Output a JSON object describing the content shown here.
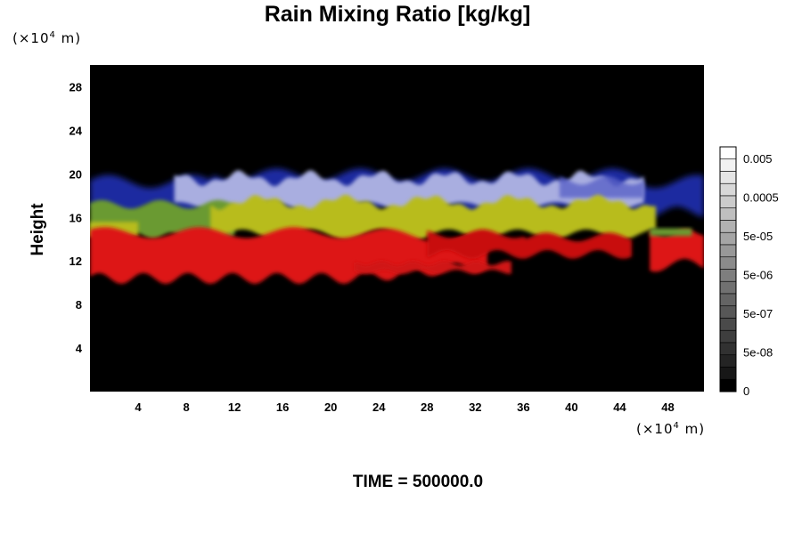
{
  "chart_data": {
    "type": "heatmap",
    "title": "Rain Mixing Ratio [kg/kg]",
    "ylabel": "Height",
    "x_unit": {
      "prefix": "(×10",
      "exp": "4",
      "suffix": " m)"
    },
    "y_unit": {
      "prefix": "(×10",
      "exp": "4",
      "suffix": " m)"
    },
    "x_ticks": [
      "4",
      "8",
      "12",
      "16",
      "20",
      "24",
      "28",
      "32",
      "36",
      "40",
      "44",
      "48"
    ],
    "y_ticks": [
      "4",
      "8",
      "12",
      "16",
      "20",
      "24",
      "28"
    ],
    "xlim": [
      0,
      51
    ],
    "ylim": [
      0,
      30
    ],
    "colorbar": {
      "labels": [
        "0.005",
        "0.0005",
        "5e-05",
        "5e-06",
        "5e-07",
        "5e-08",
        "0"
      ],
      "bands": 20
    },
    "layers": [
      {
        "color": "#e11010",
        "y_bottom_left": 10.5,
        "y_top_left": 14.5,
        "description_values": true
      },
      {
        "color": "#a8b020",
        "y_bottom": 14.5,
        "y_top": 17.5
      },
      {
        "color": "#aab0e0",
        "y_bottom": 17,
        "y_top": 20
      },
      {
        "color": "#1020a0",
        "y_bottom": 17,
        "y_top": 19.5
      }
    ]
  },
  "footer": {
    "time_label": "TIME = 500000.0"
  }
}
